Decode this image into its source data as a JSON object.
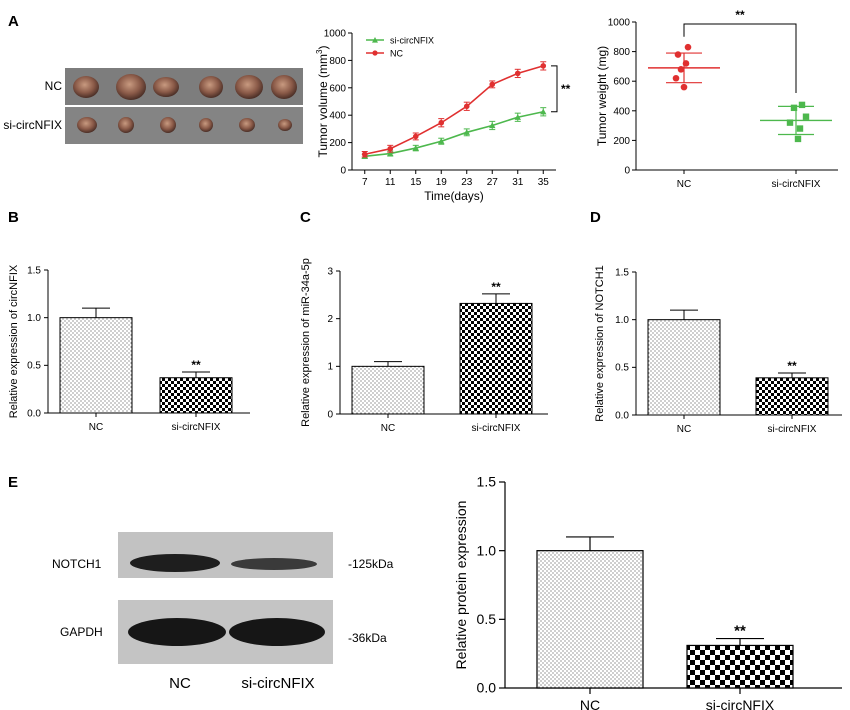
{
  "panel_labels": {
    "A": "A",
    "B": "B",
    "C": "C",
    "D": "D",
    "E": "E"
  },
  "tumor_photo": {
    "row_labels": [
      "NC",
      "si-circNFIX"
    ]
  },
  "western_blot": {
    "bands": [
      {
        "label": "NOTCH1",
        "size": "-125kDa",
        "intensity": [
          1.0,
          0.6
        ]
      },
      {
        "label": "GAPDH",
        "size": "-36kDa",
        "intensity": [
          1.0,
          1.0
        ]
      }
    ],
    "lane_labels": [
      "NC",
      "si-circNFIX"
    ]
  },
  "colors": {
    "nc": "#e03030",
    "si": "#4db84d",
    "bar_edge": "#000000"
  },
  "chart_data": [
    {
      "id": "tumor_volume",
      "type": "line",
      "title": "",
      "xlabel": "Time(days)",
      "ylabel_main": "Tumor volume (mm",
      "ylabel_sup": "3",
      "ylabel_end": ")",
      "x": [
        7,
        11,
        15,
        19,
        23,
        27,
        31,
        35
      ],
      "xlim": [
        5,
        37
      ],
      "ylim": [
        0,
        1000
      ],
      "yticks": [
        0,
        200,
        400,
        600,
        800,
        1000
      ],
      "series": [
        {
          "name": "si-circNFIX",
          "values": [
            100,
            120,
            160,
            210,
            275,
            325,
            385,
            425
          ],
          "err": [
            15,
            18,
            20,
            22,
            25,
            30,
            30,
            30
          ]
        },
        {
          "name": "NC",
          "values": [
            115,
            155,
            245,
            345,
            465,
            625,
            705,
            760
          ],
          "err": [
            20,
            25,
            25,
            30,
            30,
            25,
            30,
            30
          ]
        }
      ],
      "significance": "**"
    },
    {
      "id": "tumor_weight",
      "type": "scatter",
      "xlabel": "",
      "ylabel": "Tumor weight (mg)",
      "categories": [
        "NC",
        "si-circNFIX"
      ],
      "ylim": [
        0,
        1000
      ],
      "yticks": [
        0,
        200,
        400,
        600,
        800,
        1000
      ],
      "points": [
        [
          830,
          780,
          720,
          680,
          620,
          560
        ],
        [
          440,
          420,
          360,
          320,
          280,
          210
        ]
      ],
      "means": [
        690,
        335
      ],
      "sd": [
        100,
        95
      ],
      "significance": "**"
    },
    {
      "id": "circNFIX",
      "type": "bar",
      "ylabel": "Relative expression of circNFIX",
      "categories": [
        "NC",
        "si-circNFIX"
      ],
      "values": [
        1.0,
        0.37
      ],
      "err": [
        0.1,
        0.06
      ],
      "ylim": [
        0,
        1.5
      ],
      "yticks": [
        0.0,
        0.5,
        1.0,
        1.5
      ],
      "tick_labels": [
        "0.0",
        "0.5",
        "1.0",
        "1.5"
      ],
      "significance": [
        "",
        "**"
      ]
    },
    {
      "id": "mir34a",
      "type": "bar",
      "ylabel": "Relative expression of miR-34a-5p",
      "categories": [
        "NC",
        "si-circNFIX"
      ],
      "values": [
        1.0,
        2.32
      ],
      "err": [
        0.1,
        0.2
      ],
      "ylim": [
        0,
        3
      ],
      "yticks": [
        0,
        1,
        2,
        3
      ],
      "tick_labels": [
        "0",
        "1",
        "2",
        "3"
      ],
      "significance": [
        "",
        "**"
      ]
    },
    {
      "id": "notch1_rel",
      "type": "bar",
      "ylabel": "Relative expression of NOTCH1",
      "categories": [
        "NC",
        "si-circNFIX"
      ],
      "values": [
        1.0,
        0.39
      ],
      "err": [
        0.1,
        0.05
      ],
      "ylim": [
        0,
        1.5
      ],
      "yticks": [
        0.0,
        0.5,
        1.0,
        1.5
      ],
      "tick_labels": [
        "0.0",
        "0.5",
        "1.0",
        "1.5"
      ],
      "significance": [
        "",
        "**"
      ]
    },
    {
      "id": "protein",
      "type": "bar",
      "ylabel": "Relative protein expression",
      "categories": [
        "NC",
        "si-circNFIX"
      ],
      "values": [
        1.0,
        0.31
      ],
      "err": [
        0.1,
        0.05
      ],
      "ylim": [
        0,
        1.5
      ],
      "yticks": [
        0.0,
        0.5,
        1.0,
        1.5
      ],
      "tick_labels": [
        "0.0",
        "0.5",
        "1.0",
        "1.5"
      ],
      "significance": [
        "",
        "**"
      ]
    }
  ]
}
